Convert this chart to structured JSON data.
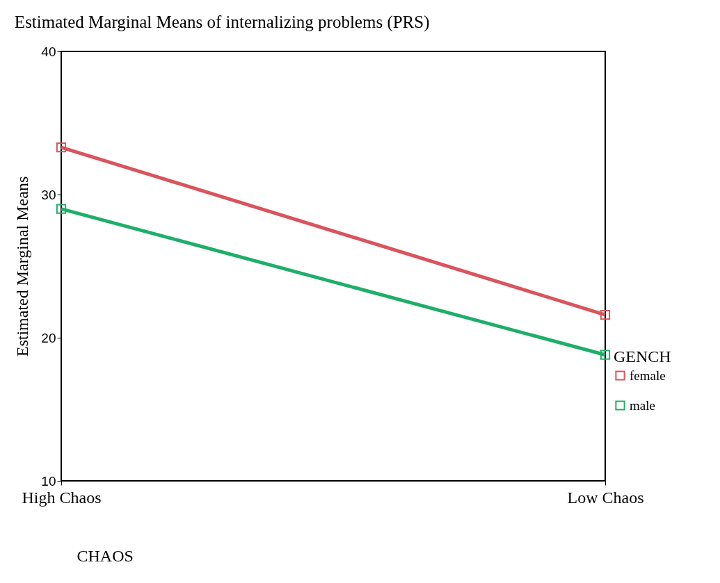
{
  "chart_data": {
    "type": "line",
    "title": "Estimated Marginal Means of internalizing problems (PRS)",
    "xlabel": "CHAOS",
    "ylabel": "Estimated Marginal Means",
    "legend_title": "GENCH",
    "categories": [
      "High Chaos",
      "Low Chaos"
    ],
    "series": [
      {
        "name": "female",
        "color": "#d9545c",
        "values": [
          33.3,
          21.6
        ]
      },
      {
        "name": "male",
        "color": "#1fae6a",
        "values": [
          29.0,
          18.8
        ]
      }
    ],
    "ylim": [
      10,
      40
    ],
    "yticks": [
      10,
      20,
      30,
      40
    ],
    "grid": false,
    "legend": "right",
    "marker": "square",
    "line_style": "solid"
  }
}
